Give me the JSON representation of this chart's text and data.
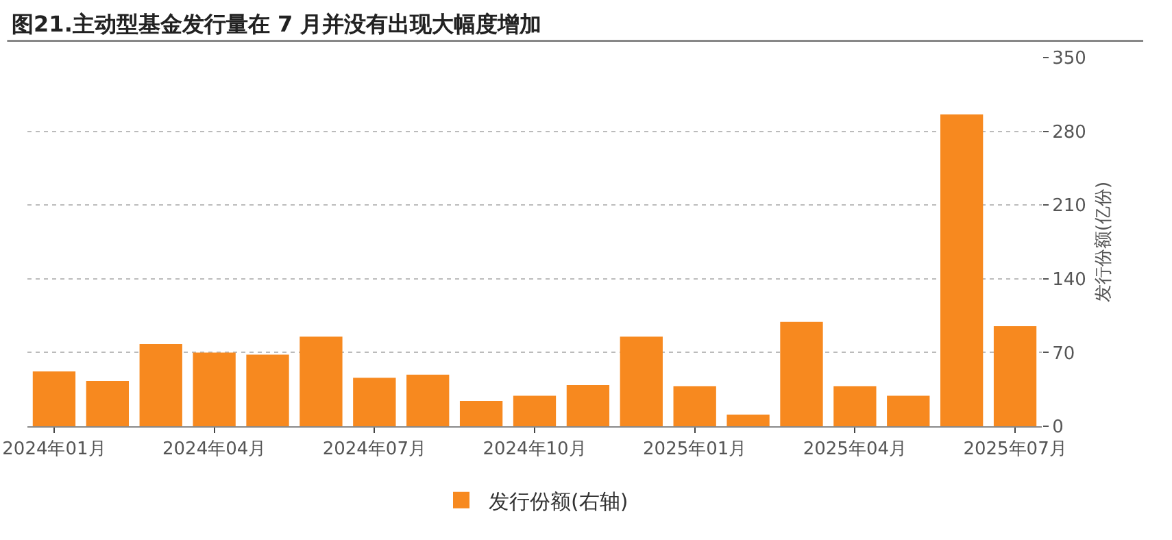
{
  "chart_data": {
    "type": "bar",
    "title": "图21.主动型基金发行量在 7 月并没有出现大幅度增加",
    "categories": [
      "2024年01月",
      null,
      null,
      "2024年04月",
      null,
      null,
      "2024年07月",
      null,
      null,
      "2024年10月",
      null,
      null,
      "2025年01月",
      null,
      null,
      "2025年04月",
      null,
      null,
      "2025年07月"
    ],
    "series": [
      {
        "name": "发行份额(右轴)",
        "color": "#f7891f",
        "axis": "y2",
        "values": [
          52,
          43,
          78,
          70,
          68,
          85,
          46,
          49,
          24,
          29,
          39,
          85,
          38,
          11,
          99,
          38,
          29,
          296,
          95
        ]
      }
    ],
    "y2label": "发行份额(亿份)",
    "y2lim": [
      0,
      350
    ],
    "y2ticks": [
      0,
      70,
      140,
      210,
      280,
      350
    ],
    "grid": "y",
    "legend": "bottom"
  }
}
